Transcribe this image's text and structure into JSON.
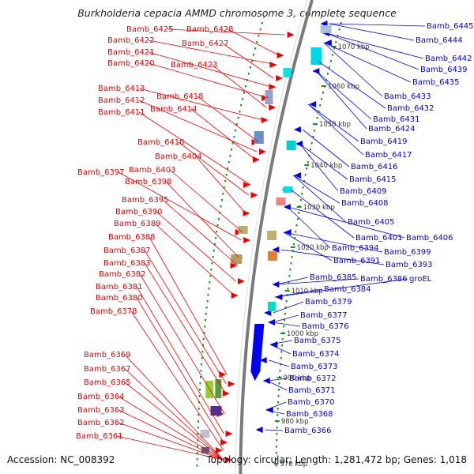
{
  "title": "Burkholderia cepacia AMMD chromosome 3, complete sequence",
  "footer": {
    "accession": "Accession: NC_008392",
    "summary": "Topology: circular; Length: 1,281,472 bp; Genes: 1,018"
  },
  "colors": {
    "forward": "#ee0000",
    "reverse": "#0000ee",
    "backbone": "#7a7a7a",
    "tick": "#228b22"
  },
  "scale": {
    "labels": [
      "1070 kbp",
      "1060 kbp",
      "1050 kbp",
      "1040 kbp",
      "1030 kbp",
      "1020 kbp",
      "1010 kbp",
      "1000 kbp",
      "990 kbp",
      "980 kbp",
      "970 kbp"
    ]
  },
  "forward_genes": [
    "Bamb_6425",
    "Bamb_6428",
    "Bamb_6422",
    "Bamb_6427",
    "Bamb_6421",
    "Bamb_6420",
    "Bamb_6423",
    "Bamb_6413",
    "Bamb_6418",
    "Bamb_6412",
    "Bamb_6414",
    "Bamb_6411",
    "Bamb_6410",
    "Bamb_6404",
    "Bamb_6403",
    "Bamb_6397",
    "Bamb_6398",
    "Bamb_6395",
    "Bamb_6390",
    "Bamb_6389",
    "Bamb_6388",
    "Bamb_6387",
    "Bamb_6383",
    "Bamb_6382",
    "Bamb_6381",
    "Bamb_6380",
    "Bamb_6378",
    "Bamb_6369",
    "Bamb_6367",
    "Bamb_6365",
    "Bamb_6364",
    "Bamb_6363",
    "Bamb_6362",
    "Bamb_6361"
  ],
  "reverse_genes": [
    "Bamb_6445",
    "Bamb_6444",
    "Bamb_6442",
    "Bamb_6439",
    "Bamb_6435",
    "Bamb_6433",
    "Bamb_6432",
    "Bamb_6431",
    "Bamb_6424",
    "Bamb_6419",
    "Bamb_6417",
    "Bamb_6416",
    "Bamb_6415",
    "Bamb_6409",
    "Bamb_6408",
    "Bamb_6405",
    "Bamb_6401",
    "Bamb_6406",
    "Bamb_6394",
    "Bamb_6399",
    "Bamb_6391",
    "Bamb_6393",
    "Bamb_6385",
    "Bamb_6386",
    "groEL",
    "Bamb_6384",
    "Bamb_6379",
    "Bamb_6377",
    "Bamb_6376",
    "Bamb_6375",
    "Bamb_6374",
    "Bamb_6373",
    "Bamb_6372",
    "Bamb_6371",
    "Bamb_6370",
    "Bamb_6368",
    "Bamb_6366"
  ]
}
